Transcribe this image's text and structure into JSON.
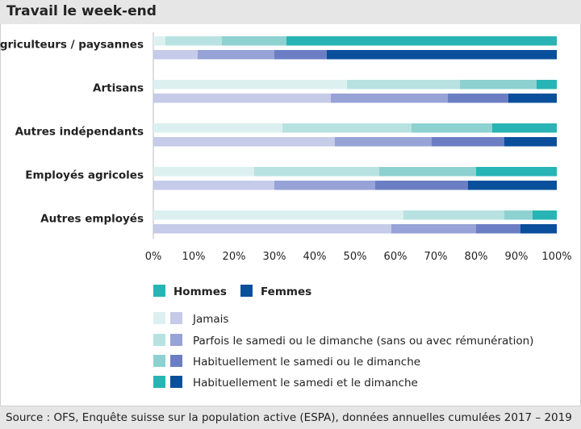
{
  "chart_data": {
    "type": "bar",
    "orientation": "horizontal-stacked-100",
    "title": "Travail le week-end",
    "categories": [
      "Agriculteurs / paysannes",
      "Artisans",
      "Autres indépendants",
      "Employés agricoles",
      "Autres employés"
    ],
    "groups": [
      "Hommes",
      "Femmes"
    ],
    "series": [
      {
        "name": "Jamais",
        "hommes": [
          3,
          48,
          32,
          25,
          62
        ],
        "femmes": [
          11,
          44,
          45,
          30,
          59
        ]
      },
      {
        "name": "Parfois le samedi ou le dimanche (sans ou avec rémunération)",
        "hommes": [
          14,
          28,
          32,
          31,
          25
        ],
        "femmes": [
          19,
          29,
          24,
          25,
          21
        ]
      },
      {
        "name": "Habituellement le samedi ou le dimanche",
        "hommes": [
          16,
          19,
          20,
          24,
          7
        ],
        "femmes": [
          13,
          15,
          18,
          23,
          11
        ]
      },
      {
        "name": "Habituellement le samedi et le dimanche",
        "hommes": [
          67,
          5,
          16,
          20,
          6
        ],
        "femmes": [
          57,
          12,
          13,
          22,
          9
        ]
      }
    ],
    "xlim": [
      0,
      100
    ],
    "xticks": [
      "0%",
      "10%",
      "20%",
      "30%",
      "40%",
      "50%",
      "60%",
      "70%",
      "80%",
      "90%",
      "100%"
    ],
    "colors": {
      "hommes": [
        "#dcf0f0",
        "#b8e2e2",
        "#8ed1d1",
        "#28b4b4"
      ],
      "femmes": [
        "#c5cbe8",
        "#97a2d6",
        "#6c7ec3",
        "#0a4f9c"
      ]
    },
    "legend_groups": {
      "hommes": "Hommes",
      "femmes": "Femmes"
    }
  },
  "source": "Source : OFS, Enquête suisse sur la population active (ESPA), données annuelles cumulées 2017 – 2019"
}
